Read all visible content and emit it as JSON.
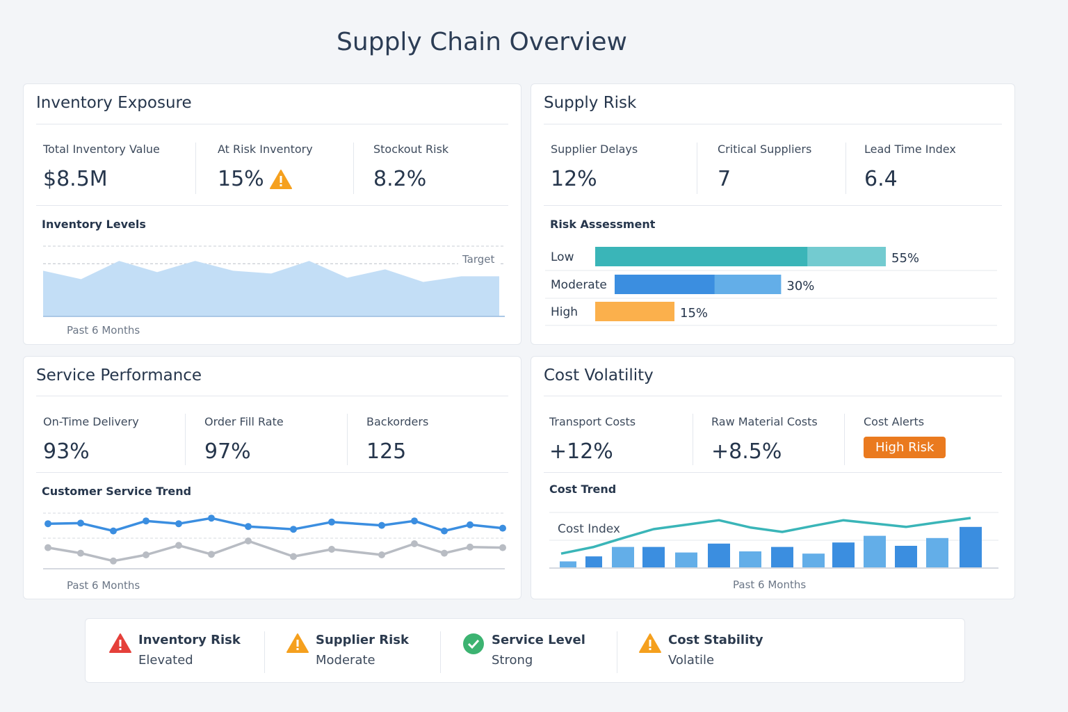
{
  "title": "Supply Chain Overview",
  "colors": {
    "teal": "#3ab5b8",
    "teal_light": "#73cbd0",
    "blue": "#3b8ee0",
    "blue_light": "#63aee8",
    "orange": "#fbb04c",
    "alert": "#ea7a1f",
    "gray": "#b8bcc3",
    "area": "#c3def6"
  },
  "inventory": {
    "title": "Inventory Exposure",
    "kpis": [
      {
        "label": "Total Inventory Value",
        "value": "$8.5M"
      },
      {
        "label": "At Risk Inventory",
        "value": "15%",
        "icon": "warning-icon"
      },
      {
        "label": "Stockout Risk",
        "value": "8.2%"
      }
    ],
    "chart_title": "Inventory Levels",
    "target_label": "Target",
    "caption": "Past 6 Months"
  },
  "supply": {
    "title": "Supply Risk",
    "kpis": [
      {
        "label": "Supplier Delays",
        "value": "12%"
      },
      {
        "label": "Critical Suppliers",
        "value": "7"
      },
      {
        "label": "Lead Time Index",
        "value": "6.4"
      }
    ],
    "chart_title": "Risk Assessment"
  },
  "service": {
    "title": "Service Performance",
    "kpis": [
      {
        "label": "On-Time Delivery",
        "value": "93%"
      },
      {
        "label": "Order Fill Rate",
        "value": "97%"
      },
      {
        "label": "Backorders",
        "value": "125"
      }
    ],
    "chart_title": "Customer Service Trend",
    "caption": "Past 6 Months"
  },
  "cost": {
    "title": "Cost Volatility",
    "kpis": [
      {
        "label": "Transport Costs",
        "value": "+12%"
      },
      {
        "label": "Raw Material Costs",
        "value": "+8.5%"
      },
      {
        "label": "Cost Alerts",
        "value": "High Risk"
      }
    ],
    "chart_title": "Cost Trend",
    "series_label": "Cost Index",
    "caption": "Past 6 Months"
  },
  "status": [
    {
      "name": "Inventory Risk",
      "state": "Elevated",
      "icon": "error-icon"
    },
    {
      "name": "Supplier Risk",
      "state": "Moderate",
      "icon": "warning-icon"
    },
    {
      "name": "Service Level",
      "state": "Strong",
      "icon": "check-icon"
    },
    {
      "name": "Cost Stability",
      "state": "Volatile",
      "icon": "warning-icon"
    }
  ],
  "chart_data": [
    {
      "type": "area",
      "title": "Inventory Levels",
      "xlabel": "Past 6 Months",
      "values": [
        65,
        53,
        79,
        63,
        79,
        65,
        61,
        79,
        55,
        67,
        49,
        57,
        57
      ],
      "target": 75,
      "ylim": [
        0,
        100
      ]
    },
    {
      "type": "bar",
      "title": "Risk Assessment",
      "orientation": "horizontal",
      "categories": [
        "Low",
        "Moderate",
        "High"
      ],
      "values": [
        55,
        30,
        15
      ],
      "labels": [
        "55%",
        "30%",
        "15%"
      ]
    },
    {
      "type": "line",
      "title": "Customer Service Trend",
      "xlabel": "Past 6 Months",
      "ylim": [
        0,
        100
      ],
      "series": [
        {
          "values": [
            81,
            82,
            68,
            86,
            81,
            91,
            76,
            71,
            84,
            78,
            86,
            68,
            79,
            73
          ]
        },
        {
          "values": [
            38,
            28,
            14,
            25,
            42,
            26,
            50,
            22,
            35,
            25,
            45,
            28,
            39,
            38
          ]
        }
      ]
    },
    {
      "type": "bar+line",
      "title": "Cost Trend",
      "xlabel": "Past 6 Months",
      "ylim": [
        0,
        100
      ],
      "bars": [
        12,
        21,
        38,
        38,
        28,
        44,
        30,
        38,
        26,
        46,
        58,
        40,
        54,
        74
      ],
      "line": {
        "name": "Cost Index",
        "values": [
          26,
          38,
          54,
          70,
          78,
          86,
          73,
          65,
          76,
          86,
          80,
          74,
          82,
          90
        ]
      }
    }
  ]
}
